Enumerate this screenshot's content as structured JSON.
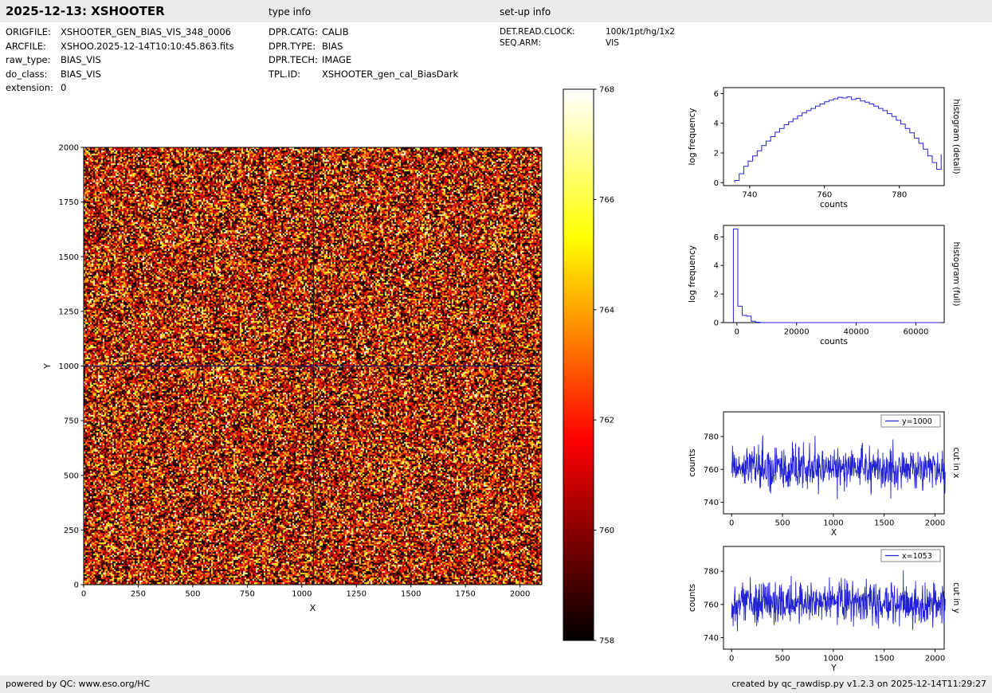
{
  "header": {
    "title": "2025-12-13: XSHOOTER",
    "type_info_label": "type info",
    "setup_info_label": "set-up info"
  },
  "file_info": [
    {
      "label": "ORIGFILE:",
      "value": "XSHOOTER_GEN_BIAS_VIS_348_0006"
    },
    {
      "label": "ARCFILE:",
      "value": "XSHOO.2025-12-14T10:10:45.863.fits"
    },
    {
      "label": "raw_type:",
      "value": "BIAS_VIS"
    },
    {
      "label": "do_class:",
      "value": "BIAS_VIS"
    },
    {
      "label": "extension:",
      "value": "0"
    }
  ],
  "type_info": [
    {
      "label": "DPR.CATG:",
      "value": "CALIB"
    },
    {
      "label": "DPR.TYPE:",
      "value": "BIAS"
    },
    {
      "label": "DPR.TECH:",
      "value": "IMAGE"
    },
    {
      "label": "TPL.ID:",
      "value": "XSHOOTER_gen_cal_BiasDark"
    }
  ],
  "setup_info": [
    {
      "label": "DET.READ.CLOCK:",
      "value": "100k/1pt/hg/1x2"
    },
    {
      "label": "SEQ.ARM:",
      "value": "VIS"
    }
  ],
  "footer": {
    "left": "powered by QC: www.eso.org/HC",
    "right": "created by qc_rawdisp.py v1.2.3 on 2025-12-14T11:29:27"
  },
  "colors": {
    "line": "#2121d6",
    "crosshair": "#12125e",
    "header_bg": "#ebebeb",
    "frame": "#000000"
  },
  "main_image": {
    "xlabel": "X",
    "ylabel": "Y",
    "xticks": [
      0,
      250,
      500,
      750,
      1000,
      1250,
      1500,
      1750,
      2000
    ],
    "yticks": [
      0,
      250,
      500,
      750,
      1000,
      1250,
      1500,
      1750,
      2000
    ],
    "xlim": [
      0,
      2100
    ],
    "ylim": [
      0,
      2000
    ],
    "cut_x_position": 1053,
    "cut_y_position": 1000,
    "colormap": "hot",
    "vmin": 758,
    "vmax": 768,
    "noise": {
      "mean": 761.3,
      "std": 3.2,
      "seed": 42
    }
  },
  "colorbar": {
    "ticks": [
      768,
      766,
      764,
      762,
      760,
      758
    ],
    "vmin": 758,
    "vmax": 768
  },
  "chart_data": [
    {
      "id": "hist_detail",
      "type": "line",
      "step": true,
      "xlabel": "counts",
      "ylabel": "log frequency",
      "right_label": "histogram (detail)",
      "xlim": [
        733,
        792
      ],
      "ylim": [
        -0.2,
        6.4
      ],
      "xticks": [
        740,
        760,
        780
      ],
      "yticks": [
        0,
        2,
        4,
        6
      ],
      "x": [
        736,
        737.2,
        738.4,
        739.6,
        740.8,
        742,
        743.2,
        744.4,
        745.6,
        746.8,
        748,
        749.2,
        750.4,
        751.6,
        752.8,
        754,
        755.2,
        756.4,
        757.6,
        758.8,
        760,
        761.2,
        762.4,
        763.6,
        764.8,
        766,
        767.2,
        768.4,
        769.6,
        770.8,
        772,
        773.2,
        774.4,
        775.6,
        776.8,
        778,
        779.2,
        780.4,
        781.6,
        782.8,
        784,
        785.2,
        786.4,
        787.6,
        788.8,
        790,
        791.2
      ],
      "y": [
        0.15,
        0.6,
        1.1,
        1.45,
        1.8,
        2.15,
        2.5,
        2.8,
        3.1,
        3.4,
        3.65,
        3.9,
        4.1,
        4.3,
        4.5,
        4.7,
        4.85,
        5.0,
        5.15,
        5.3,
        5.45,
        5.55,
        5.65,
        5.75,
        5.7,
        5.78,
        5.6,
        5.68,
        5.5,
        5.42,
        5.3,
        5.15,
        5.0,
        4.85,
        4.65,
        4.45,
        4.2,
        3.95,
        3.65,
        3.35,
        3.0,
        2.65,
        2.25,
        1.8,
        1.35,
        0.9,
        1.9
      ]
    },
    {
      "id": "hist_full",
      "type": "line",
      "step": true,
      "xlabel": "counts",
      "ylabel": "log frequency",
      "right_label": "histogram (full)",
      "xlim": [
        -4500,
        69500
      ],
      "ylim": [
        0,
        6.8
      ],
      "xticks": [
        0,
        20000,
        40000,
        60000
      ],
      "yticks": [
        0,
        2,
        4,
        6
      ],
      "x": [
        -1200,
        300,
        1800,
        3300,
        4800,
        6300,
        7800,
        68500
      ],
      "y": [
        6.55,
        1.15,
        0.5,
        0.45,
        0.1,
        0.03,
        0,
        0
      ]
    },
    {
      "id": "cut_x",
      "type": "line",
      "legend": "y=1000",
      "xlabel": "X",
      "ylabel": "counts",
      "right_label": "cut in x",
      "xlim": [
        -80,
        2090
      ],
      "ylim": [
        733,
        795
      ],
      "xticks": [
        0,
        500,
        1000,
        1500,
        2000
      ],
      "yticks": [
        740,
        760,
        780
      ],
      "noise": {
        "n": 700,
        "x_max": 2100,
        "mean": 761,
        "std": 6.3,
        "seed": 101
      }
    },
    {
      "id": "cut_y",
      "type": "line",
      "legend": "x=1053",
      "xlabel": "Y",
      "ylabel": "counts",
      "right_label": "cut in y",
      "xlim": [
        -80,
        2090
      ],
      "ylim": [
        733,
        795
      ],
      "xticks": [
        0,
        500,
        1000,
        1500,
        2000
      ],
      "yticks": [
        740,
        760,
        780
      ],
      "noise": {
        "n": 700,
        "x_max": 2100,
        "mean": 761,
        "std": 6.3,
        "seed": 202
      }
    }
  ]
}
